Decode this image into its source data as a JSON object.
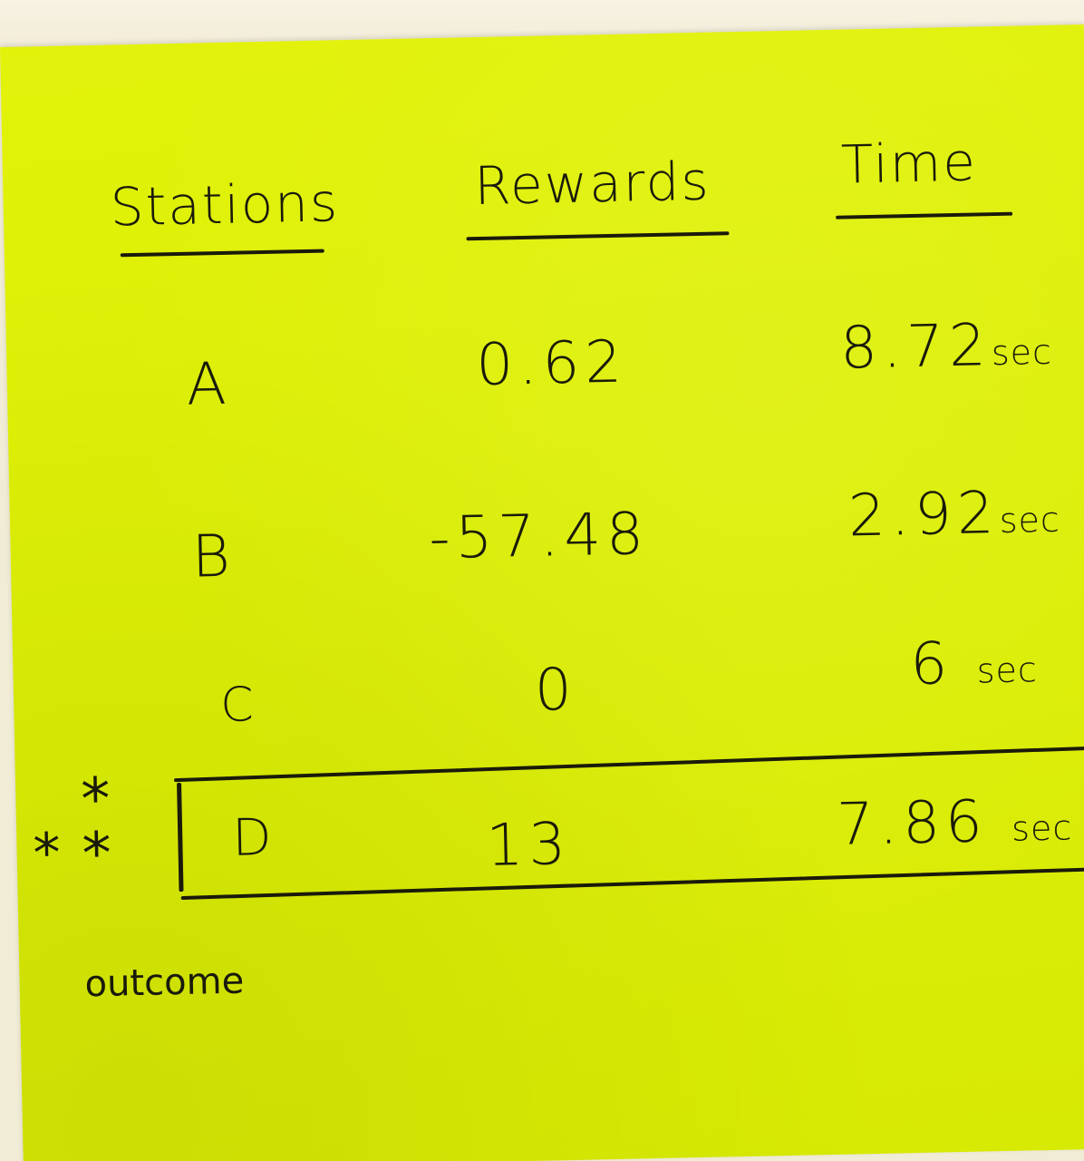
{
  "table": {
    "headers": {
      "stations": "Stations",
      "rewards": "Rewards",
      "time": "Time"
    },
    "rows": [
      {
        "station": "A",
        "reward": "0.62",
        "time": "8.72",
        "unit": "sec"
      },
      {
        "station": "B",
        "reward": "-57.48",
        "time": "2.92",
        "unit": "sec"
      },
      {
        "station": "C",
        "reward": "0",
        "time": "6",
        "unit": "sec"
      },
      {
        "station": "D",
        "reward": "13",
        "time": "7.86",
        "unit": "sec"
      }
    ]
  },
  "annotation": {
    "stars": "*",
    "outcome_label": "outcome"
  },
  "colors": {
    "note": "#dcef05",
    "ink": "#1a1a0a"
  }
}
